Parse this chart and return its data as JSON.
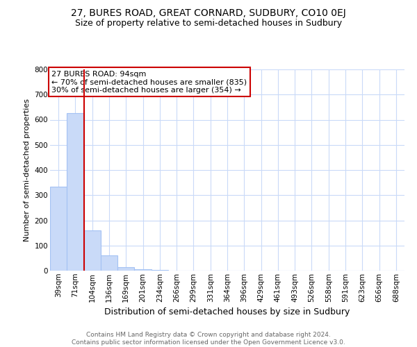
{
  "title": "27, BURES ROAD, GREAT CORNARD, SUDBURY, CO10 0EJ",
  "subtitle": "Size of property relative to semi-detached houses in Sudbury",
  "xlabel": "Distribution of semi-detached houses by size in Sudbury",
  "ylabel": "Number of semi-detached properties",
  "categories": [
    "39sqm",
    "71sqm",
    "104sqm",
    "136sqm",
    "169sqm",
    "201sqm",
    "234sqm",
    "266sqm",
    "299sqm",
    "331sqm",
    "364sqm",
    "396sqm",
    "429sqm",
    "461sqm",
    "493sqm",
    "526sqm",
    "558sqm",
    "591sqm",
    "623sqm",
    "656sqm",
    "688sqm"
  ],
  "values": [
    335,
    625,
    160,
    60,
    15,
    5,
    2,
    0,
    0,
    0,
    0,
    0,
    0,
    0,
    0,
    0,
    0,
    0,
    0,
    0,
    0
  ],
  "bar_color": "#c9daf8",
  "bar_edge_color": "#a4c2f4",
  "grid_color": "#c9daf8",
  "ylim": [
    0,
    800
  ],
  "yticks": [
    0,
    100,
    200,
    300,
    400,
    500,
    600,
    700,
    800
  ],
  "property_line_x": 1.5,
  "property_line_color": "#cc0000",
  "annotation_text": "27 BURES ROAD: 94sqm\n← 70% of semi-detached houses are smaller (835)\n30% of semi-detached houses are larger (354) →",
  "annotation_box_color": "#ffffff",
  "annotation_box_edge_color": "#cc0000",
  "footer_line1": "Contains HM Land Registry data © Crown copyright and database right 2024.",
  "footer_line2": "Contains public sector information licensed under the Open Government Licence v3.0.",
  "background_color": "#ffffff",
  "title_fontsize": 10,
  "subtitle_fontsize": 9,
  "ylabel_fontsize": 8,
  "xlabel_fontsize": 9,
  "tick_fontsize": 7.5,
  "annotation_fontsize": 8,
  "footer_fontsize": 6.5
}
